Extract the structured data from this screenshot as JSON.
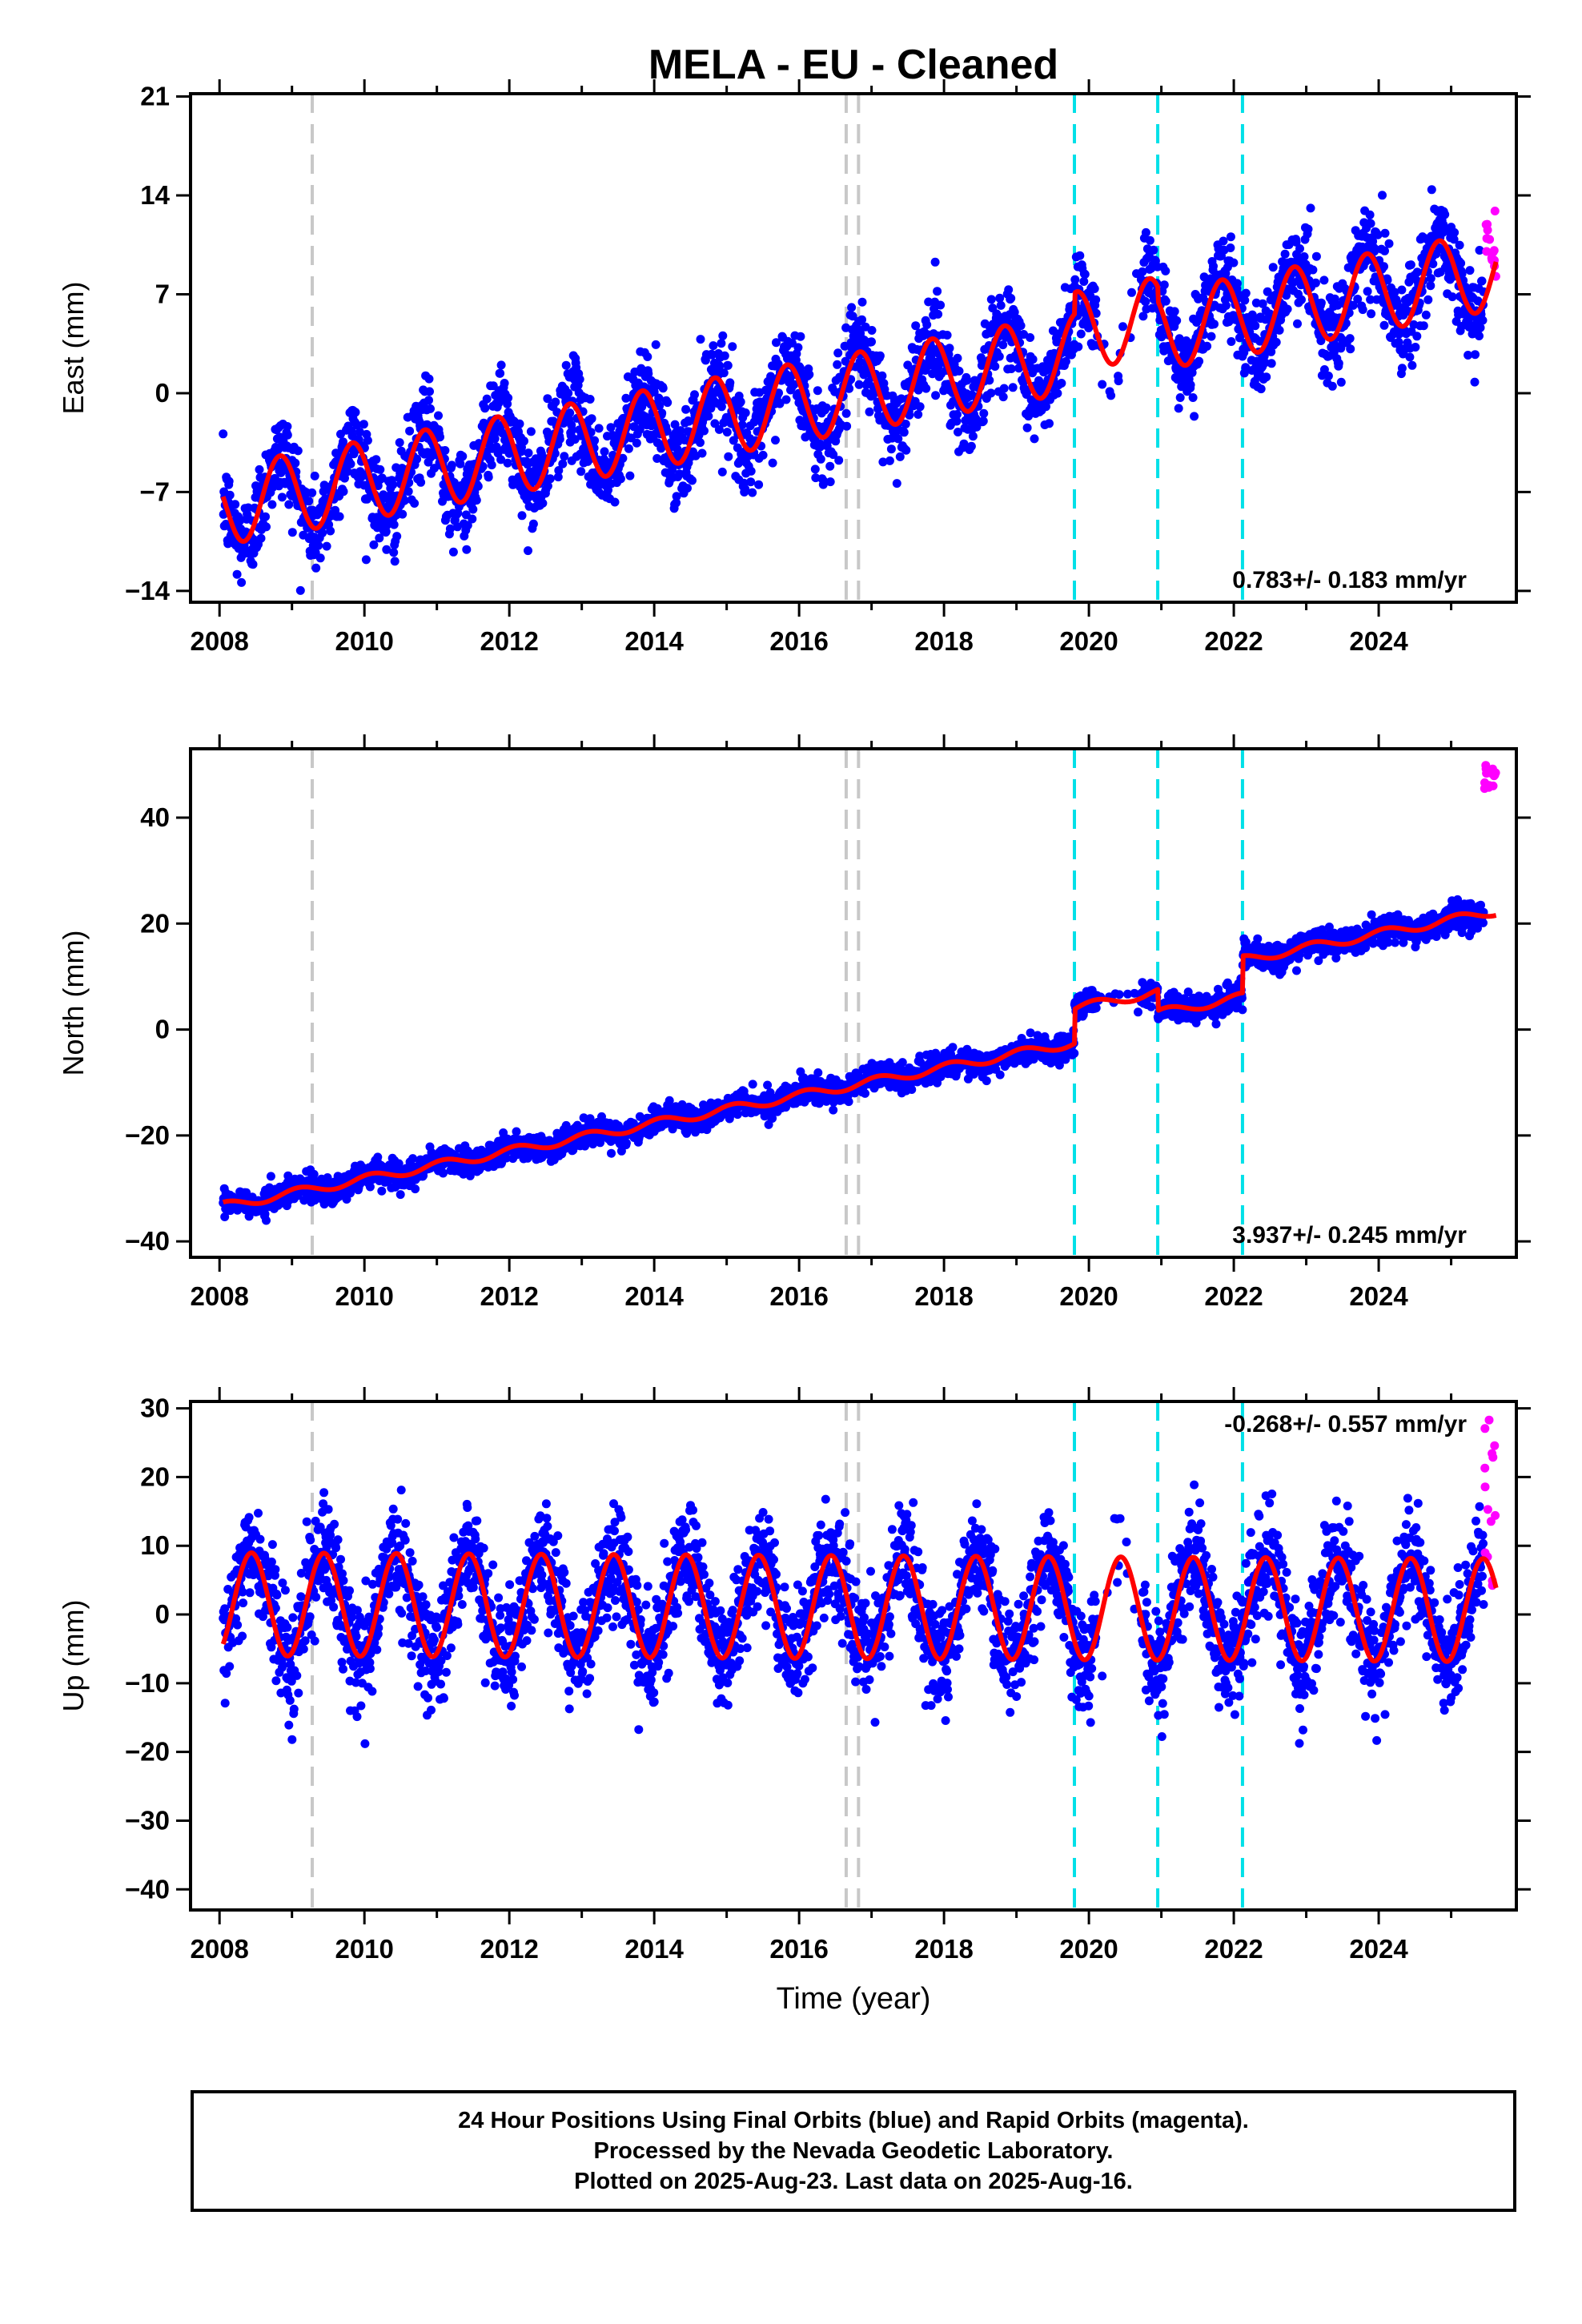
{
  "chart_data": {
    "type": "scatter",
    "title": "MELA  - EU - Cleaned",
    "xlabel": "Time (year)",
    "xlim": [
      2007.6,
      2025.9
    ],
    "x_ticks": [
      2008,
      2010,
      2012,
      2014,
      2016,
      2018,
      2020,
      2022,
      2024
    ],
    "x_tick_labels": [
      "2008",
      "2010",
      "2012",
      "2014",
      "2016",
      "2018",
      "2020",
      "2022",
      "2024"
    ],
    "data_start": 2008.05,
    "data_end": 2025.62,
    "rapid_start": 2025.45,
    "colors": {
      "final_orbits": "#0000ff",
      "rapid_orbits": "#ff00ff",
      "model": "#ff0000",
      "gray_events": "#c8c8c8",
      "cyan_events": "#00e0e8"
    },
    "gray_event_lines": [
      2009.28,
      2016.65,
      2016.82
    ],
    "cyan_event_lines": [
      2019.8,
      2020.95,
      2022.12
    ],
    "panels": [
      {
        "name": "east",
        "ylabel": "East (mm)",
        "ylim": [
          -14.8,
          21.2
        ],
        "y_ticks": [
          21,
          14,
          7,
          0,
          -7,
          -14
        ],
        "y_tick_labels": [
          "21",
          "14",
          "7",
          "0",
          "−7",
          "−14"
        ],
        "rate_label": "0.783+/- 0.183 mm/yr",
        "rate_position": "bottom-right",
        "trend": {
          "ref_year": 2008.0,
          "intercept": -8.0,
          "slope": 0.92
        },
        "annual_amplitude": 2.8,
        "annual_phase": 2.6,
        "scatter_sigma": 1.6,
        "offsets": [
          {
            "year": 2019.8,
            "size": 1.5
          },
          {
            "year": 2020.95,
            "size": -1.0
          }
        ],
        "rapid_range": [
          8,
          13
        ]
      },
      {
        "name": "north",
        "ylabel": "North (mm)",
        "ylim": [
          -43,
          53
        ],
        "y_ticks": [
          40,
          20,
          0,
          -20,
          -40
        ],
        "y_tick_labels": [
          "40",
          "20",
          "0",
          "−20",
          "−40"
        ],
        "rate_label": "3.937+/- 0.245 mm/yr",
        "rate_position": "bottom-right",
        "trend": {
          "ref_year": 2008.0,
          "intercept": -33.5,
          "slope": 2.63
        },
        "annual_amplitude": 0.8,
        "annual_phase": 1.0,
        "scatter_sigma": 1.2,
        "offsets": [
          {
            "year": 2019.8,
            "size": 6.5
          },
          {
            "year": 2020.95,
            "size": -4.0
          },
          {
            "year": 2022.12,
            "size": 7.0
          }
        ],
        "rapid_range": [
          45,
          50
        ]
      },
      {
        "name": "up",
        "ylabel": "Up (mm)",
        "ylim": [
          -43,
          31
        ],
        "y_ticks": [
          30,
          20,
          10,
          0,
          -10,
          -20,
          -30,
          -40
        ],
        "y_tick_labels": [
          "30",
          "20",
          "10",
          "0",
          "−10",
          "−20",
          "−30",
          "−40"
        ],
        "rate_label": "-0.268+/- 0.557 mm/yr",
        "rate_position": "top-right",
        "trend": {
          "ref_year": 2008.0,
          "intercept": 1.5,
          "slope": -0.05
        },
        "annual_amplitude": 7.5,
        "annual_phase": -1.2,
        "scatter_sigma": 3.8,
        "offsets": [],
        "rapid_range": [
          4,
          29
        ]
      }
    ]
  },
  "footer": {
    "line1": "24 Hour Positions Using Final Orbits (blue) and Rapid Orbits (magenta).",
    "line2": "Processed by the Nevada Geodetic Laboratory.",
    "line3": "Plotted on 2025-Aug-23. Last data on 2025-Aug-16."
  }
}
